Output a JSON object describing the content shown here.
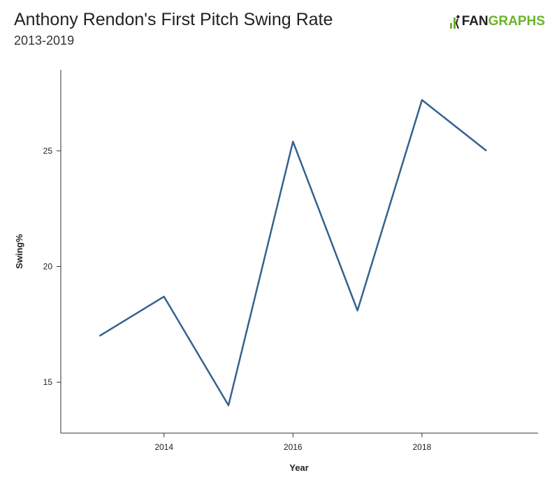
{
  "header": {
    "title": "Anthony Rendon's First Pitch Swing Rate",
    "subtitle": "2013-2019"
  },
  "logo": {
    "text_left": "FAN",
    "text_right": "GRAPHS",
    "icon": "fangraphs-logo-icon",
    "accent_color": "#6ab42d"
  },
  "chart_data": {
    "type": "line",
    "xlabel": "Year",
    "ylabel": "Swing%",
    "x": [
      2013,
      2014,
      2015,
      2016,
      2017,
      2018,
      2019
    ],
    "series": [
      {
        "values": [
          17.0,
          18.7,
          14.0,
          25.4,
          18.1,
          27.2,
          25.0
        ],
        "color": "#34628f"
      }
    ],
    "xticks": [
      2014,
      2016,
      2018
    ],
    "yticks": [
      15,
      20,
      25
    ],
    "xlim": [
      2012.4,
      2019.8
    ],
    "ylim": [
      12.8,
      28.5
    ],
    "grid": false
  }
}
